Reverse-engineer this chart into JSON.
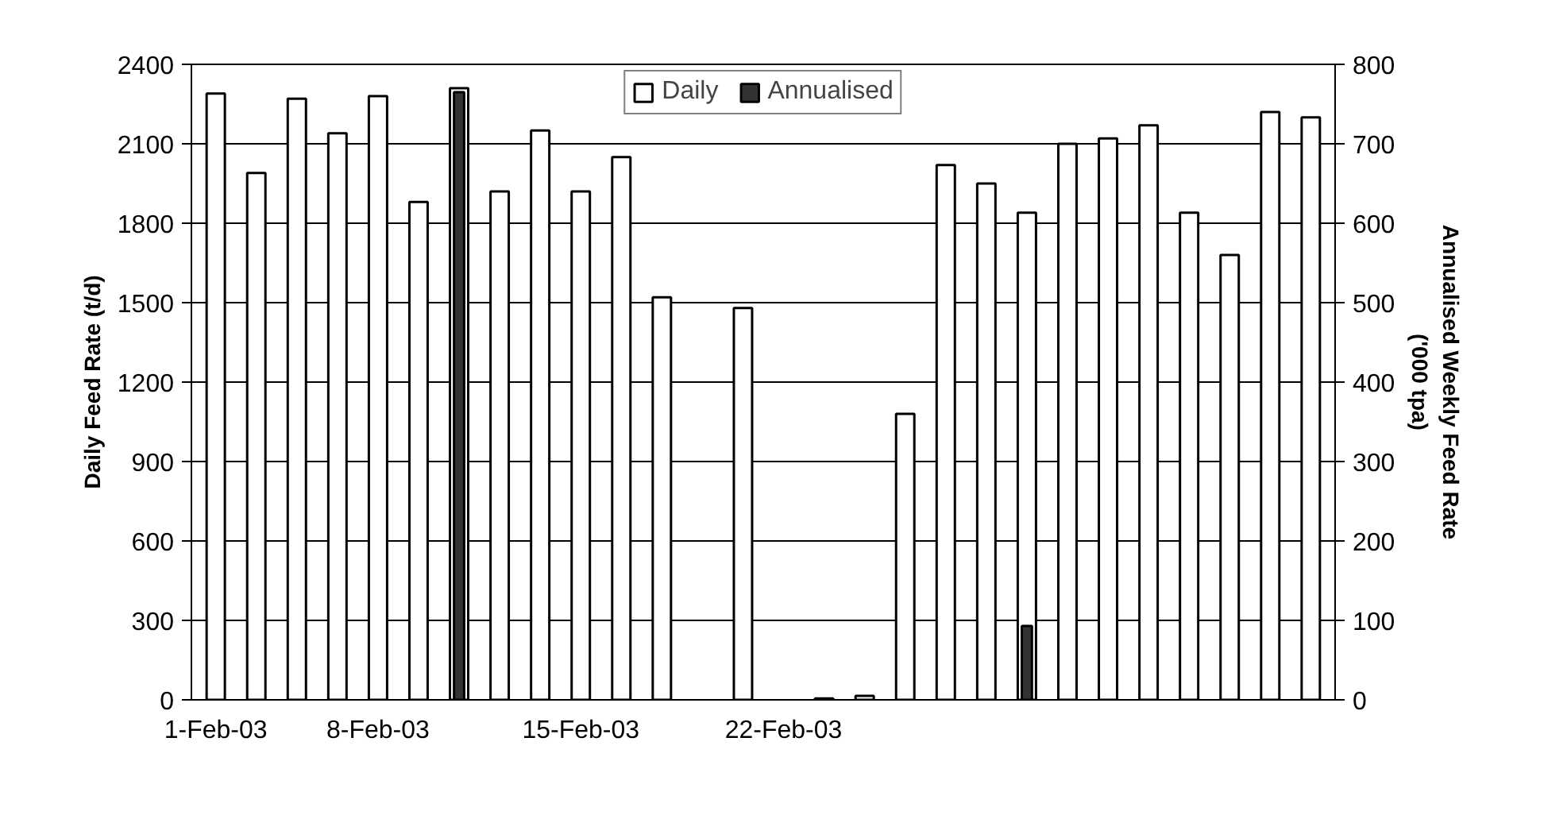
{
  "chart_data": {
    "type": "bar",
    "ylabel": "Daily Feed Rate (t/d)",
    "y2label": "Annualised Weekly Feed Rate\n('000 tpa)",
    "categories": [
      "1-Feb-03",
      null,
      null,
      null,
      "8-Feb-03",
      null,
      null,
      null,
      null,
      "15-Feb-03",
      null,
      null,
      null,
      null,
      "22-Feb-03",
      null,
      null,
      null,
      null,
      null,
      null,
      null,
      null,
      null,
      null,
      null,
      null,
      null
    ],
    "series": [
      {
        "name": "Daily",
        "color": "#ffffff",
        "values": [
          2290,
          1990,
          2270,
          2140,
          2280,
          1880,
          2310,
          1920,
          2150,
          1920,
          2050,
          1520,
          null,
          1480,
          null,
          5,
          15,
          1080,
          2020,
          1950,
          1840,
          2100,
          2120,
          2170,
          1840,
          1680,
          2220,
          2200
        ]
      },
      {
        "name": "Annualised",
        "color": "#333333",
        "axis": "y2",
        "values": [
          null,
          null,
          null,
          null,
          null,
          null,
          765,
          null,
          null,
          null,
          null,
          null,
          null,
          null,
          null,
          null,
          null,
          null,
          null,
          null,
          93,
          null,
          null,
          null,
          null,
          null,
          null,
          null
        ]
      }
    ],
    "ylim": [
      0,
      2400
    ],
    "yticks": [
      0,
      300,
      600,
      900,
      1200,
      1500,
      1800,
      2100,
      2400
    ],
    "y2lim": [
      0,
      800
    ],
    "y2ticks": [
      0,
      100,
      200,
      300,
      400,
      500,
      600,
      700,
      800
    ],
    "grid": "y",
    "legend": "top"
  }
}
